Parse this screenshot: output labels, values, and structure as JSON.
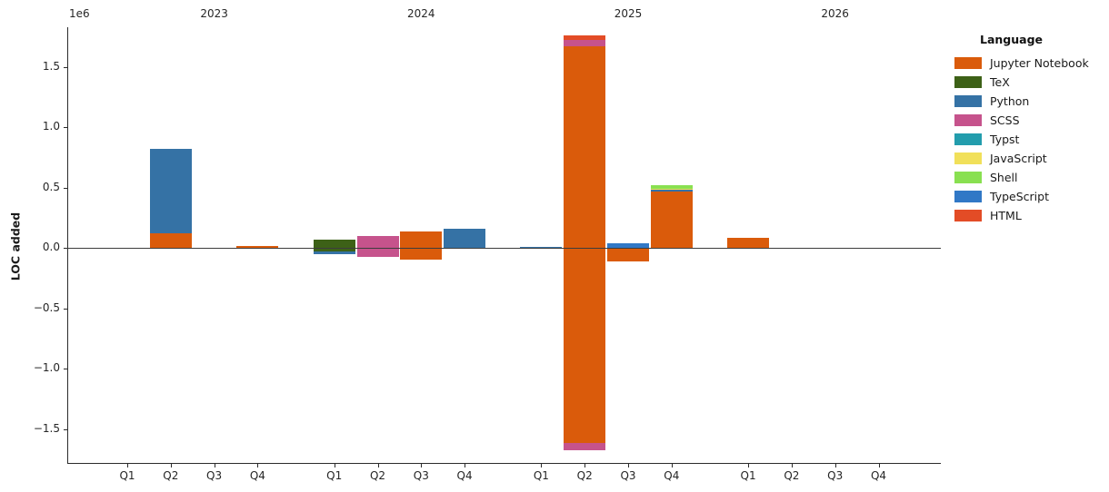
{
  "chart_data": {
    "type": "bar",
    "stacked": true,
    "diverging": true,
    "title": "",
    "ylabel": "LOC added",
    "xlabel": "",
    "offset_text": "1e6",
    "unit": "LOC",
    "ylim": [
      -1830000,
      1830000
    ],
    "grid": false,
    "legend_position": "right",
    "years": [
      "2023",
      "2024",
      "2025",
      "2026"
    ],
    "quarters": [
      "Q1",
      "Q2",
      "Q3",
      "Q4"
    ],
    "yticks": [
      {
        "value": 1500000,
        "label": "1.5"
      },
      {
        "value": 1000000,
        "label": "1.0"
      },
      {
        "value": 500000,
        "label": "0.5"
      },
      {
        "value": 0,
        "label": "0.0"
      },
      {
        "value": -500000,
        "label": "−0.5"
      },
      {
        "value": -1000000,
        "label": "−1.0"
      },
      {
        "value": -1500000,
        "label": "−1.5"
      }
    ],
    "legend": {
      "title": "Language",
      "entries": [
        {
          "label": "Jupyter Notebook",
          "color": "#DA5B0B"
        },
        {
          "label": "TeX",
          "color": "#3D6117"
        },
        {
          "label": "Python",
          "color": "#3572A5"
        },
        {
          "label": "SCSS",
          "color": "#C6538C"
        },
        {
          "label": "Typst",
          "color": "#239DAD"
        },
        {
          "label": "JavaScript",
          "color": "#F1E05A"
        },
        {
          "label": "Shell",
          "color": "#89E051"
        },
        {
          "label": "TypeScript",
          "color": "#3178C6"
        },
        {
          "label": "HTML",
          "color": "#E34C26"
        }
      ]
    },
    "bars": [
      {
        "year": "2023",
        "quarter": "Q1",
        "segments": []
      },
      {
        "year": "2023",
        "quarter": "Q2",
        "segments": [
          {
            "language": "Jupyter Notebook",
            "from": 0,
            "to": 120000
          },
          {
            "language": "Python",
            "from": 120000,
            "to": 820000
          }
        ]
      },
      {
        "year": "2023",
        "quarter": "Q3",
        "segments": []
      },
      {
        "year": "2023",
        "quarter": "Q4",
        "segments": [
          {
            "language": "Jupyter Notebook",
            "from": 0,
            "to": 12000
          }
        ]
      },
      {
        "year": "2024",
        "quarter": "Q1",
        "segments": [
          {
            "language": "TeX",
            "from": -28000,
            "to": 70000
          },
          {
            "language": "Python",
            "from": -49000,
            "to": -28000
          }
        ]
      },
      {
        "year": "2024",
        "quarter": "Q2",
        "segments": [
          {
            "language": "SCSS",
            "from": -75000,
            "to": 100000
          }
        ]
      },
      {
        "year": "2024",
        "quarter": "Q3",
        "segments": [
          {
            "language": "Jupyter Notebook",
            "from": -98000,
            "to": 138000
          }
        ]
      },
      {
        "year": "2024",
        "quarter": "Q4",
        "segments": [
          {
            "language": "Python",
            "from": 0,
            "to": 155000
          }
        ]
      },
      {
        "year": "2025",
        "quarter": "Q1",
        "segments": [
          {
            "language": "Python",
            "from": 0,
            "to": 10000
          }
        ]
      },
      {
        "year": "2025",
        "quarter": "Q2",
        "segments": [
          {
            "language": "Jupyter Notebook",
            "from": -1620000,
            "to": 1670000
          },
          {
            "language": "SCSS",
            "from": 1670000,
            "to": 1720000
          },
          {
            "language": "HTML",
            "from": 1720000,
            "to": 1760000
          },
          {
            "language": "SCSS",
            "from": -1680000,
            "to": -1620000
          }
        ]
      },
      {
        "year": "2025",
        "quarter": "Q3",
        "segments": [
          {
            "language": "Jupyter Notebook",
            "from": -115000,
            "to": 0
          },
          {
            "language": "TypeScript",
            "from": 0,
            "to": 35000
          }
        ]
      },
      {
        "year": "2025",
        "quarter": "Q4",
        "segments": [
          {
            "language": "Jupyter Notebook",
            "from": 0,
            "to": 468000
          },
          {
            "language": "Python",
            "from": 468000,
            "to": 481000
          },
          {
            "language": "JavaScript",
            "from": 481000,
            "to": 489000
          },
          {
            "language": "Shell",
            "from": 489000,
            "to": 519000
          }
        ]
      },
      {
        "year": "2026",
        "quarter": "Q1",
        "segments": [
          {
            "language": "Jupyter Notebook",
            "from": 0,
            "to": 85000
          }
        ]
      },
      {
        "year": "2026",
        "quarter": "Q2",
        "segments": []
      },
      {
        "year": "2026",
        "quarter": "Q3",
        "segments": []
      },
      {
        "year": "2026",
        "quarter": "Q4",
        "segments": []
      }
    ]
  }
}
